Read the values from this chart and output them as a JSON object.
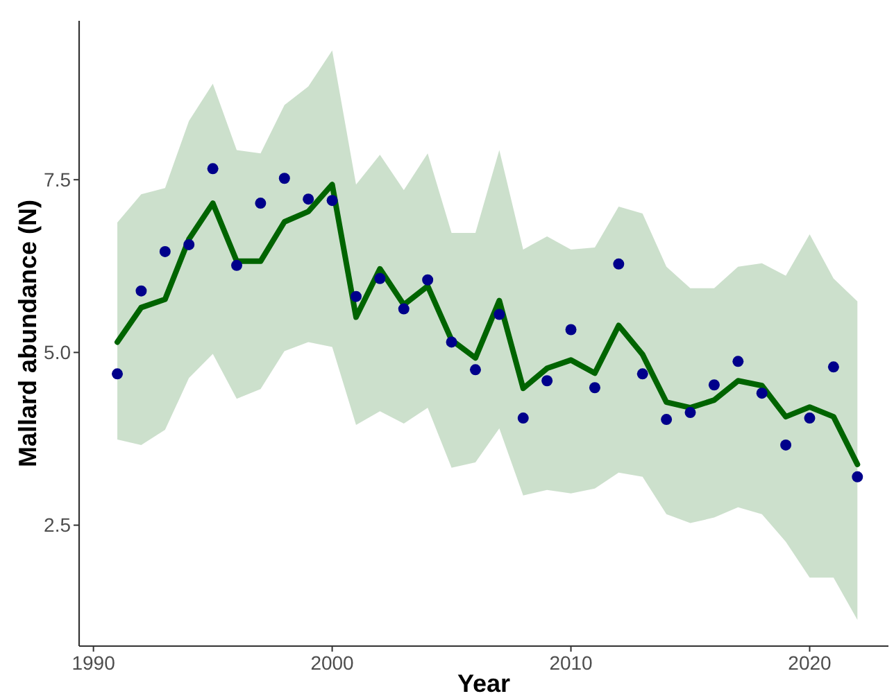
{
  "chart_data": {
    "type": "line",
    "xlabel": "Year",
    "ylabel": "Mallard abundance (N)",
    "x": [
      1991,
      1992,
      1993,
      1994,
      1995,
      1996,
      1997,
      1998,
      1999,
      2000,
      2001,
      2002,
      2003,
      2004,
      2005,
      2006,
      2007,
      2008,
      2009,
      2010,
      2011,
      2012,
      2013,
      2014,
      2015,
      2016,
      2017,
      2018,
      2019,
      2020,
      2021,
      2022
    ],
    "xlim": [
      1989.4,
      2023.3
    ],
    "xticks": [
      1990,
      2000,
      2010,
      2020
    ],
    "ylim": [
      0.75,
      9.8
    ],
    "yticks": [
      {
        "value": 2.5,
        "label": "2.5"
      },
      {
        "value": 5,
        "label": "5.0"
      },
      {
        "value": 7.5,
        "label": "7.5"
      }
    ],
    "grid": false,
    "series": [
      {
        "color": "#006400",
        "line_style": "solid",
        "marker": "none",
        "values": [
          5.15,
          5.65,
          5.77,
          6.64,
          7.16,
          6.32,
          6.32,
          6.89,
          7.04,
          7.43,
          5.51,
          6.21,
          5.69,
          5.96,
          5.18,
          4.92,
          5.75,
          4.48,
          4.77,
          4.89,
          4.7,
          5.39,
          4.97,
          4.28,
          4.2,
          4.31,
          4.59,
          4.52,
          4.07,
          4.21,
          4.07,
          3.38
        ],
        "lower": [
          3.74,
          3.66,
          3.88,
          4.63,
          4.98,
          4.33,
          4.47,
          5.02,
          5.15,
          5.08,
          3.95,
          4.15,
          3.97,
          4.2,
          3.33,
          3.41,
          3.9,
          2.93,
          3.01,
          2.96,
          3.03,
          3.26,
          3.2,
          2.66,
          2.53,
          2.61,
          2.76,
          2.66,
          2.26,
          1.74,
          1.74,
          1.13
        ],
        "upper": [
          6.88,
          7.29,
          7.38,
          8.35,
          8.89,
          7.93,
          7.88,
          8.58,
          8.85,
          9.37,
          7.43,
          7.86,
          7.35,
          7.88,
          6.73,
          6.73,
          7.93,
          6.49,
          6.68,
          6.49,
          6.52,
          7.11,
          7.01,
          6.24,
          5.93,
          5.93,
          6.24,
          6.29,
          6.11,
          6.71,
          6.07,
          5.74
        ]
      },
      {
        "type": "scatter",
        "color": "#00008b",
        "marker": "circle",
        "values": [
          4.69,
          5.89,
          6.46,
          6.56,
          7.66,
          6.26,
          7.16,
          7.52,
          7.22,
          7.2,
          5.81,
          6.07,
          5.63,
          6.05,
          5.15,
          4.75,
          5.55,
          4.05,
          4.59,
          5.33,
          4.49,
          6.28,
          4.69,
          4.03,
          4.13,
          4.53,
          4.87,
          4.41,
          3.66,
          4.05,
          4.79,
          3.2
        ]
      }
    ]
  }
}
